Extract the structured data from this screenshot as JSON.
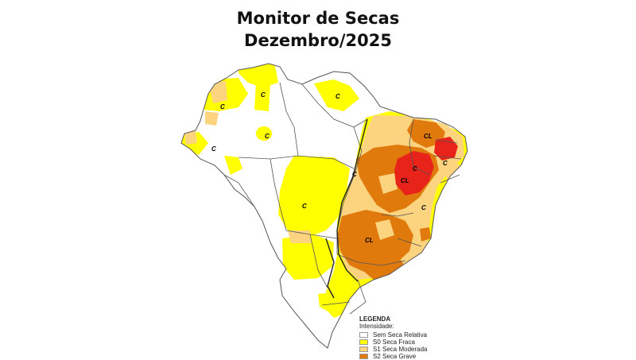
{
  "title_line1": "Monitor de Secas",
  "title_line2": "Dezembro/2025",
  "legend": {
    "heading": "LEGENDA",
    "subheading": "Intensidade:",
    "items": [
      {
        "label": "Sem Seca Relativa",
        "color": "#ffffff"
      },
      {
        "label": "S0 Seca Fraca",
        "color": "#ffff00"
      },
      {
        "label": "S1 Seca Moderada",
        "color": "#fcd37f"
      },
      {
        "label": "S2 Seca Grave",
        "color": "#e07a0c"
      }
    ]
  },
  "colors": {
    "s0": "#ffff00",
    "s1": "#fcd37f",
    "s2": "#e07a0c",
    "s3": "#e8231a",
    "border": "#555555"
  },
  "map_labels": {
    "c": "C",
    "cl": "CL"
  }
}
